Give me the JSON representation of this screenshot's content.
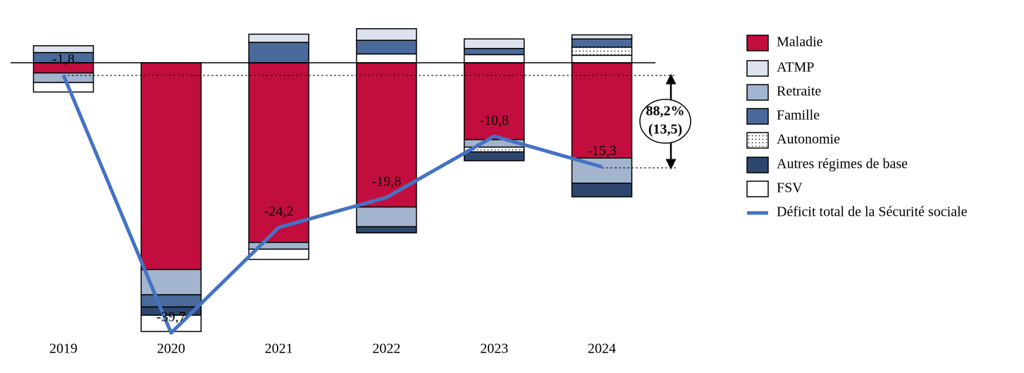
{
  "chart_data": {
    "type": "bar",
    "categories": [
      "2019",
      "2020",
      "2021",
      "2022",
      "2023",
      "2024"
    ],
    "stacked": true,
    "series": [
      {
        "name": "Maladie",
        "color": "#c20e3e",
        "values": [
          -1.5,
          -30.4,
          -26.4,
          -21.2,
          -11.3,
          -14.0
        ]
      },
      {
        "name": "ATMP",
        "color": "#dde3ee",
        "values": [
          1.0,
          0,
          1.2,
          1.7,
          1.4,
          0.6
        ]
      },
      {
        "name": "Retraite",
        "color": "#a3b4cf",
        "values": [
          -1.4,
          -3.7,
          -1.0,
          -2.9,
          -1.1,
          -3.7
        ]
      },
      {
        "name": "Famille",
        "color": "#4a6a9c",
        "values": [
          1.5,
          -1.8,
          3.0,
          2.0,
          0.9,
          1.2
        ]
      },
      {
        "name": "Autonomie",
        "color": "#ffffff",
        "fill_pattern": "dotted",
        "values": [
          0,
          0,
          0,
          0,
          -0.7,
          1.2
        ]
      },
      {
        "name": "Autres régimes de base",
        "color": "#2e476e",
        "values": [
          0,
          -1.2,
          0,
          -0.9,
          -1.3,
          -2.0
        ]
      },
      {
        "name": "FSV",
        "color": "#ffffff",
        "values": [
          -1.4,
          -2.4,
          -1.5,
          1.3,
          1.2,
          1.1
        ]
      }
    ],
    "line": {
      "name": "Déficit total de la Sécurité sociale",
      "color": "#4472c4",
      "values": [
        -1.8,
        -39.7,
        -24.2,
        -19.8,
        -10.8,
        -15.3
      ],
      "value_labels": [
        "-1,8",
        "-39,7",
        "-24,2",
        "-19,8",
        "-10,8",
        "-15,3"
      ]
    },
    "annotation": {
      "percent": "88,2%",
      "amount": "(13,5)"
    }
  }
}
